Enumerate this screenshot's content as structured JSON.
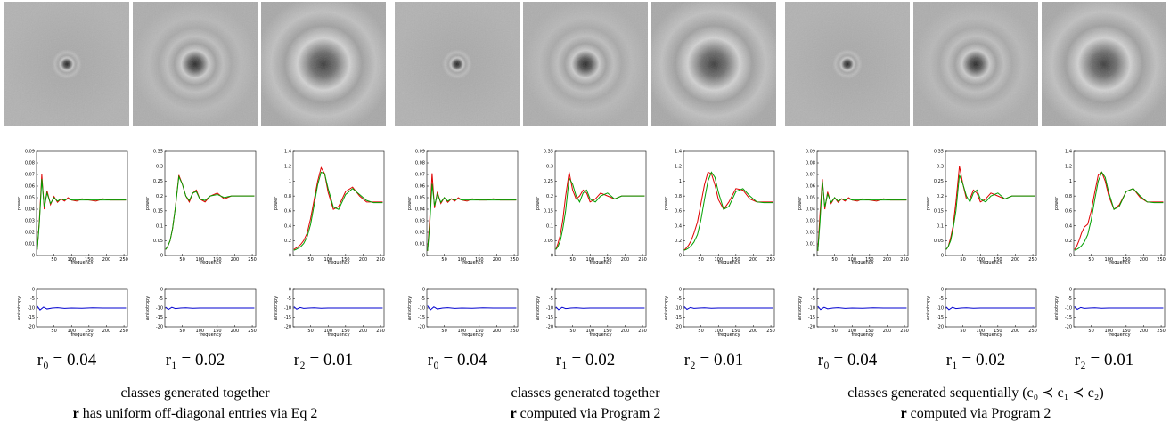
{
  "power_axes": {
    "xlabel": "frequency",
    "ylabel": "power",
    "xlim": [
      0,
      260
    ],
    "xticks": [
      50,
      100,
      150,
      200,
      250
    ],
    "x": [
      2,
      8,
      15,
      22,
      30,
      40,
      50,
      60,
      70,
      80,
      90,
      100,
      115,
      130,
      150,
      170,
      190,
      210,
      230,
      256
    ]
  },
  "anisotropy_axes": {
    "xlabel": "frequency",
    "ylabel": "anisotropy",
    "xlim": [
      0,
      260
    ],
    "xticks": [
      50,
      100,
      150,
      200,
      250
    ],
    "ylim": [
      -20,
      0
    ],
    "yticks": [
      -20,
      -15,
      -10,
      -5,
      0
    ],
    "x": [
      2,
      10,
      20,
      30,
      45,
      60,
      80,
      100,
      130,
      160,
      190,
      220,
      256
    ]
  },
  "groups": [
    {
      "caption_line1": "classes generated together",
      "caption_bold": "r",
      "caption_rest": " has uniform off-diagonal entries via Eq 2",
      "columns": [
        {
          "label": "r₀ = 0.04",
          "power": {
            "ylim": [
              0,
              0.09
            ],
            "yticks": [
              0,
              0.01,
              0.02,
              0.03,
              0.04,
              0.05,
              0.06,
              0.07,
              0.08,
              0.09
            ],
            "series": [
              {
                "color": "#e00000",
                "values": [
                  0.005,
                  0.03,
                  0.07,
                  0.04,
                  0.056,
                  0.044,
                  0.051,
                  0.046,
                  0.049,
                  0.047,
                  0.05,
                  0.048,
                  0.047,
                  0.049,
                  0.048,
                  0.047,
                  0.049,
                  0.048,
                  0.048,
                  0.048
                ]
              },
              {
                "color": "#00a000",
                "values": [
                  0.005,
                  0.028,
                  0.066,
                  0.042,
                  0.054,
                  0.045,
                  0.05,
                  0.047,
                  0.049,
                  0.048,
                  0.049,
                  0.048,
                  0.048,
                  0.048,
                  0.048,
                  0.048,
                  0.048,
                  0.048,
                  0.048,
                  0.048
                ]
              }
            ]
          },
          "anisotropy": {
            "color": "#0000d0",
            "values": [
              -9,
              -11,
              -9.5,
              -10.5,
              -10,
              -9.8,
              -10.2,
              -10,
              -10.1,
              -9.9,
              -10,
              -10,
              -10
            ]
          }
        },
        {
          "label": "r₁ = 0.02",
          "power": {
            "ylim": [
              0,
              0.35
            ],
            "yticks": [
              0,
              0.05,
              0.1,
              0.15,
              0.2,
              0.25,
              0.3,
              0.35
            ],
            "series": [
              {
                "color": "#e00000",
                "values": [
                  0.02,
                  0.03,
                  0.05,
                  0.09,
                  0.16,
                  0.27,
                  0.24,
                  0.2,
                  0.18,
                  0.21,
                  0.22,
                  0.19,
                  0.18,
                  0.2,
                  0.21,
                  0.19,
                  0.2,
                  0.2,
                  0.2,
                  0.2
                ]
              },
              {
                "color": "#00a000",
                "values": [
                  0.02,
                  0.03,
                  0.05,
                  0.09,
                  0.16,
                  0.265,
                  0.24,
                  0.2,
                  0.185,
                  0.21,
                  0.215,
                  0.19,
                  0.185,
                  0.2,
                  0.205,
                  0.195,
                  0.2,
                  0.2,
                  0.2,
                  0.2
                ]
              }
            ]
          },
          "anisotropy": {
            "color": "#0000d0",
            "values": [
              -9.5,
              -10.8,
              -9.6,
              -10.3,
              -10,
              -9.9,
              -10.1,
              -10,
              -10,
              -10,
              -10,
              -10,
              -10
            ]
          }
        },
        {
          "label": "r₂ = 0.01",
          "power": {
            "ylim": [
              0,
              1.4
            ],
            "yticks": [
              0,
              0.2,
              0.4,
              0.6,
              0.8,
              1,
              1.2,
              1.4
            ],
            "series": [
              {
                "color": "#e00000",
                "values": [
                  0.08,
                  0.1,
                  0.12,
                  0.15,
                  0.2,
                  0.3,
                  0.5,
                  0.75,
                  1.0,
                  1.18,
                  1.1,
                  0.85,
                  0.62,
                  0.66,
                  0.86,
                  0.92,
                  0.8,
                  0.72,
                  0.72,
                  0.72
                ]
              },
              {
                "color": "#00a000",
                "values": [
                  0.07,
                  0.08,
                  0.1,
                  0.12,
                  0.16,
                  0.25,
                  0.42,
                  0.68,
                  0.95,
                  1.12,
                  1.1,
                  0.9,
                  0.65,
                  0.62,
                  0.82,
                  0.9,
                  0.82,
                  0.74,
                  0.71,
                  0.71
                ]
              }
            ]
          },
          "anisotropy": {
            "color": "#0000d0",
            "values": [
              -9.3,
              -10.6,
              -9.7,
              -10.2,
              -10,
              -9.9,
              -10.1,
              -10,
              -10,
              -10,
              -10,
              -10,
              -10
            ]
          }
        }
      ]
    },
    {
      "caption_line1": "classes generated together",
      "caption_bold": "r",
      "caption_rest": " computed via Program 2",
      "columns": [
        {
          "label": "r₀ = 0.04",
          "power": {
            "ylim": [
              0,
              0.09
            ],
            "yticks": [
              0,
              0.01,
              0.02,
              0.03,
              0.04,
              0.05,
              0.06,
              0.07,
              0.08,
              0.09
            ],
            "series": [
              {
                "color": "#e00000",
                "values": [
                  0.004,
                  0.03,
                  0.071,
                  0.041,
                  0.055,
                  0.045,
                  0.05,
                  0.046,
                  0.049,
                  0.047,
                  0.05,
                  0.048,
                  0.047,
                  0.049,
                  0.048,
                  0.048,
                  0.049,
                  0.048,
                  0.048,
                  0.048
                ]
              },
              {
                "color": "#00a000",
                "values": [
                  0.004,
                  0.025,
                  0.062,
                  0.043,
                  0.053,
                  0.046,
                  0.05,
                  0.047,
                  0.049,
                  0.048,
                  0.049,
                  0.048,
                  0.048,
                  0.048,
                  0.048,
                  0.048,
                  0.048,
                  0.048,
                  0.048,
                  0.048
                ]
              }
            ]
          },
          "anisotropy": {
            "color": "#0000d0",
            "values": [
              -8.8,
              -11,
              -9.4,
              -10.5,
              -10,
              -9.8,
              -10.2,
              -10,
              -10.1,
              -9.9,
              -10,
              -10,
              -10
            ]
          }
        },
        {
          "label": "r₁ = 0.02",
          "power": {
            "ylim": [
              0,
              0.35
            ],
            "yticks": [
              0,
              0.05,
              0.1,
              0.15,
              0.2,
              0.25,
              0.3,
              0.35
            ],
            "series": [
              {
                "color": "#e00000",
                "values": [
                  0.02,
                  0.04,
                  0.07,
                  0.12,
                  0.2,
                  0.28,
                  0.22,
                  0.19,
                  0.2,
                  0.22,
                  0.21,
                  0.18,
                  0.19,
                  0.21,
                  0.2,
                  0.19,
                  0.2,
                  0.2,
                  0.2,
                  0.2
                ]
              },
              {
                "color": "#00a000",
                "values": [
                  0.02,
                  0.03,
                  0.05,
                  0.09,
                  0.15,
                  0.26,
                  0.24,
                  0.2,
                  0.18,
                  0.21,
                  0.22,
                  0.19,
                  0.18,
                  0.2,
                  0.21,
                  0.19,
                  0.2,
                  0.2,
                  0.2,
                  0.2
                ]
              }
            ]
          },
          "anisotropy": {
            "color": "#0000d0",
            "values": [
              -9.4,
              -10.9,
              -9.6,
              -10.3,
              -10,
              -9.9,
              -10.1,
              -10,
              -10,
              -10,
              -10,
              -10,
              -10
            ]
          }
        },
        {
          "label": "r₂ = 0.01",
          "power": {
            "ylim": [
              0,
              1.4
            ],
            "yticks": [
              0,
              0.2,
              0.4,
              0.6,
              0.8,
              1,
              1.2,
              1.4
            ],
            "series": [
              {
                "color": "#e00000",
                "values": [
                  0.07,
                  0.1,
                  0.14,
                  0.2,
                  0.3,
                  0.45,
                  0.7,
                  0.95,
                  1.12,
                  1.1,
                  0.95,
                  0.75,
                  0.62,
                  0.72,
                  0.9,
                  0.88,
                  0.76,
                  0.72,
                  0.72,
                  0.72
                ]
              },
              {
                "color": "#00a000",
                "values": [
                  0.07,
                  0.08,
                  0.1,
                  0.13,
                  0.18,
                  0.28,
                  0.48,
                  0.75,
                  1.0,
                  1.12,
                  1.05,
                  0.85,
                  0.62,
                  0.66,
                  0.86,
                  0.9,
                  0.8,
                  0.72,
                  0.71,
                  0.71
                ]
              }
            ]
          },
          "anisotropy": {
            "color": "#0000d0",
            "values": [
              -9.2,
              -10.7,
              -9.7,
              -10.2,
              -10,
              -9.9,
              -10.1,
              -10,
              -10,
              -10,
              -10,
              -10,
              -10
            ]
          }
        }
      ]
    },
    {
      "caption_line1": "classes generated sequentially (c₀ ≺ c₁ ≺ c₂)",
      "caption_bold": "r",
      "caption_rest": " computed via Program 2",
      "columns": [
        {
          "label": "r₀ = 0.04",
          "power": {
            "ylim": [
              0,
              0.09
            ],
            "yticks": [
              0,
              0.01,
              0.02,
              0.03,
              0.04,
              0.05,
              0.06,
              0.07,
              0.08,
              0.09
            ],
            "series": [
              {
                "color": "#e00000",
                "values": [
                  0.004,
                  0.035,
                  0.066,
                  0.04,
                  0.055,
                  0.045,
                  0.05,
                  0.046,
                  0.049,
                  0.047,
                  0.05,
                  0.048,
                  0.047,
                  0.049,
                  0.048,
                  0.047,
                  0.049,
                  0.048,
                  0.048,
                  0.048
                ]
              },
              {
                "color": "#00a000",
                "values": [
                  0.004,
                  0.028,
                  0.064,
                  0.042,
                  0.053,
                  0.046,
                  0.05,
                  0.047,
                  0.049,
                  0.048,
                  0.049,
                  0.048,
                  0.048,
                  0.048,
                  0.048,
                  0.048,
                  0.048,
                  0.048,
                  0.048,
                  0.048
                ]
              }
            ]
          },
          "anisotropy": {
            "color": "#0000d0",
            "values": [
              -9.1,
              -10.8,
              -9.6,
              -10.4,
              -10,
              -9.8,
              -10.2,
              -10,
              -10.1,
              -9.9,
              -10,
              -10,
              -10
            ]
          }
        },
        {
          "label": "r₁ = 0.02",
          "power": {
            "ylim": [
              0,
              0.35
            ],
            "yticks": [
              0,
              0.05,
              0.1,
              0.15,
              0.2,
              0.25,
              0.3,
              0.35
            ],
            "series": [
              {
                "color": "#e00000",
                "values": [
                  0.02,
                  0.03,
                  0.06,
                  0.1,
                  0.18,
                  0.3,
                  0.24,
                  0.19,
                  0.19,
                  0.22,
                  0.21,
                  0.18,
                  0.19,
                  0.21,
                  0.2,
                  0.19,
                  0.2,
                  0.2,
                  0.2,
                  0.2
                ]
              },
              {
                "color": "#00a000",
                "values": [
                  0.02,
                  0.03,
                  0.05,
                  0.09,
                  0.15,
                  0.27,
                  0.24,
                  0.2,
                  0.18,
                  0.21,
                  0.22,
                  0.19,
                  0.18,
                  0.2,
                  0.21,
                  0.19,
                  0.2,
                  0.2,
                  0.2,
                  0.2
                ]
              }
            ]
          },
          "anisotropy": {
            "color": "#0000d0",
            "values": [
              -9.4,
              -10.9,
              -9.6,
              -10.3,
              -10,
              -9.9,
              -10.1,
              -10,
              -10,
              -10,
              -10,
              -10,
              -10
            ]
          }
        },
        {
          "label": "r₂ = 0.01",
          "power": {
            "ylim": [
              0,
              1.4
            ],
            "yticks": [
              0,
              0.2,
              0.4,
              0.6,
              0.8,
              1,
              1.2,
              1.4
            ],
            "series": [
              {
                "color": "#e00000",
                "values": [
                  0.08,
                  0.12,
                  0.2,
                  0.3,
                  0.38,
                  0.42,
                  0.6,
                  0.85,
                  1.08,
                  1.12,
                  1.0,
                  0.8,
                  0.62,
                  0.68,
                  0.86,
                  0.9,
                  0.78,
                  0.72,
                  0.72,
                  0.72
                ]
              },
              {
                "color": "#00a000",
                "values": [
                  0.07,
                  0.08,
                  0.1,
                  0.13,
                  0.18,
                  0.28,
                  0.48,
                  0.75,
                  1.0,
                  1.12,
                  1.05,
                  0.85,
                  0.62,
                  0.66,
                  0.86,
                  0.9,
                  0.8,
                  0.72,
                  0.71,
                  0.71
                ]
              }
            ]
          },
          "anisotropy": {
            "color": "#0000d0",
            "values": [
              -9.2,
              -10.7,
              -9.7,
              -10.2,
              -10,
              -9.9,
              -10.1,
              -10,
              -10,
              -10,
              -10,
              -10,
              -10
            ]
          }
        }
      ]
    }
  ]
}
